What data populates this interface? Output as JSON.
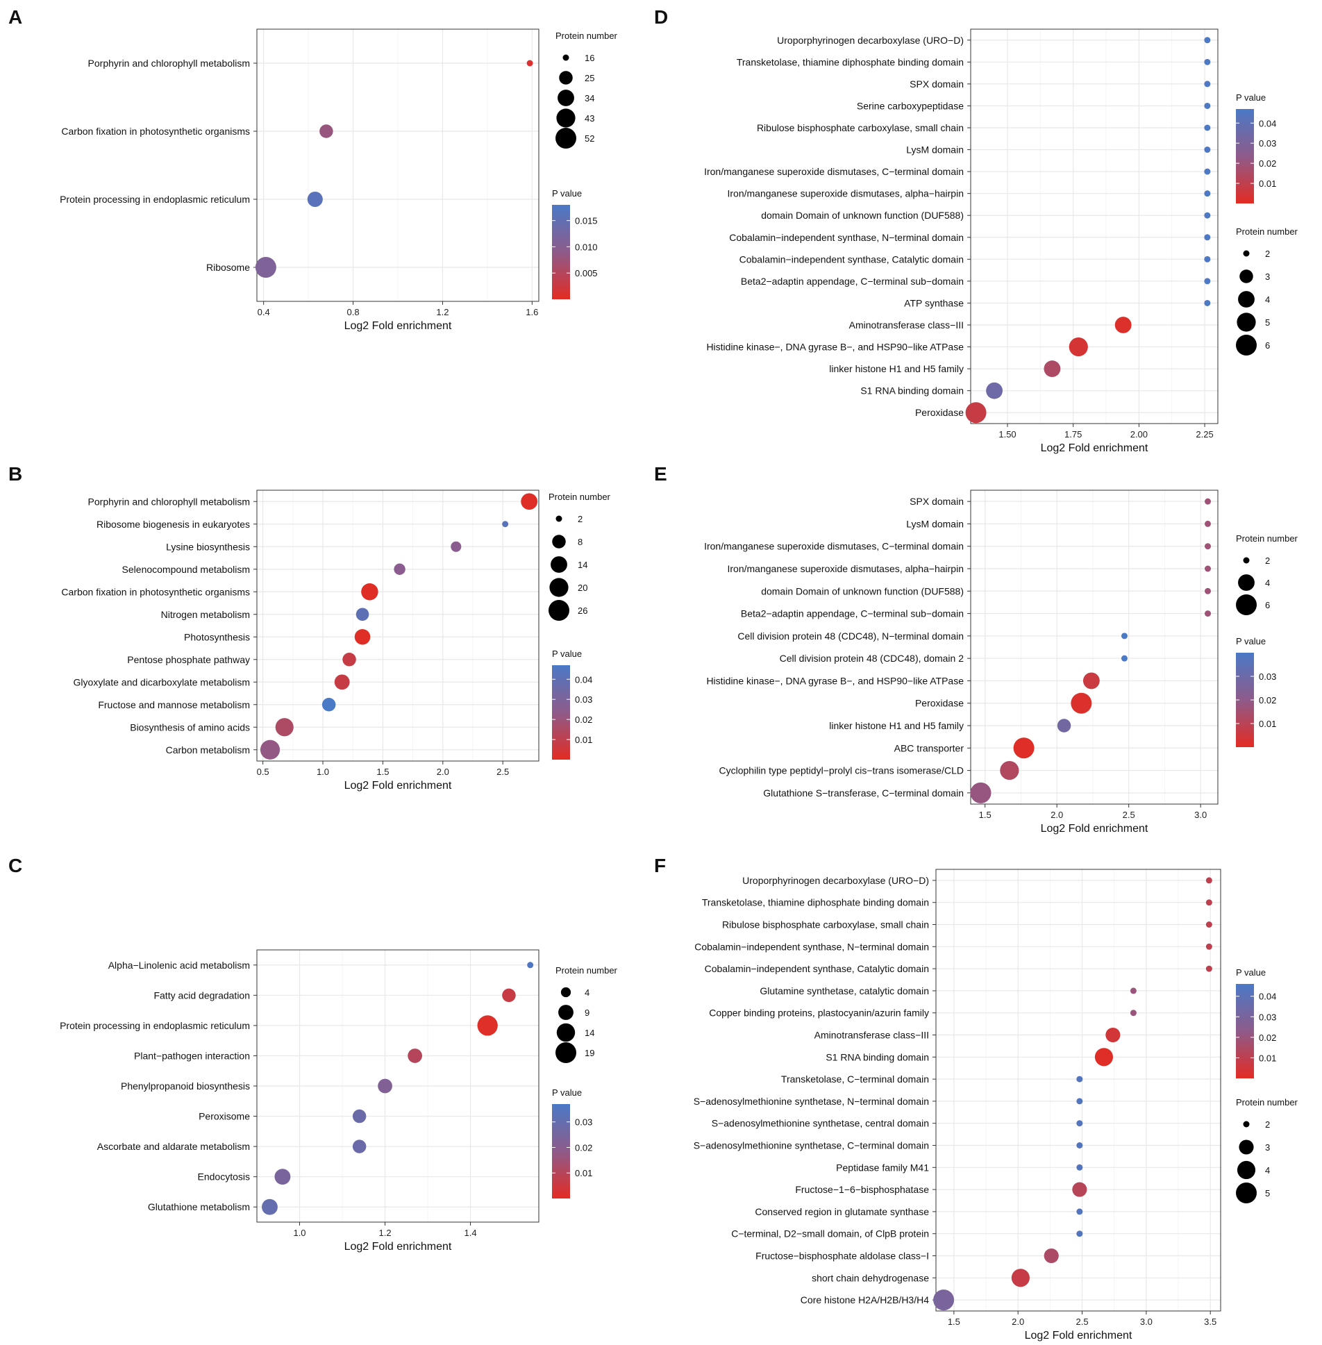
{
  "colors": {
    "low_p": "#e32c22",
    "mid_p": "#8e5b8a",
    "high_p": "#4a79c6",
    "grid": "#e8e8e8",
    "frame": "#333333",
    "background": "#ffffff"
  },
  "chart_data": [
    {
      "panel": "A",
      "type": "scatter",
      "xlabel": "Log2 Fold enrichment",
      "ylabel": "",
      "xlim": [
        0.37,
        1.63
      ],
      "xticks": [
        0.4,
        0.8,
        1.2,
        1.6
      ],
      "xtick_labels": [
        "0.4",
        "0.8",
        "1.2",
        "1.6"
      ],
      "categories": [
        "Porphyrin and chlorophyll metabolism",
        "Carbon fixation in photosynthetic organisms",
        "Protein processing in endoplasmic reticulum",
        "Ribosome"
      ],
      "x": [
        1.59,
        0.68,
        0.63,
        0.41
      ],
      "size": [
        16,
        25,
        30,
        52
      ],
      "p": [
        0.001,
        0.008,
        0.016,
        0.011
      ],
      "size_legend": {
        "title": "Protein number",
        "values": [
          16,
          25,
          34,
          43,
          52
        ],
        "labels": [
          "16",
          "25",
          "34",
          "43",
          "52"
        ],
        "min": 16,
        "max": 52
      },
      "color_legend": {
        "title": "P value",
        "min": 0.0,
        "max": 0.018,
        "ticks": [
          0.015,
          0.01,
          0.005
        ],
        "labels": [
          "0.015",
          "0.010",
          "0.005"
        ]
      }
    },
    {
      "panel": "B",
      "type": "scatter",
      "xlabel": "Log2 Fold enrichment",
      "ylabel": "",
      "xlim": [
        0.45,
        2.8
      ],
      "xticks": [
        0.5,
        1.0,
        1.5,
        2.0,
        2.5
      ],
      "xtick_labels": [
        "0.5",
        "1.0",
        "1.5",
        "2.0",
        "2.5"
      ],
      "categories": [
        "Porphyrin and chlorophyll metabolism",
        "Ribosome biogenesis in eukaryotes",
        "Lysine biosynthesis",
        "Selenocompound metabolism",
        "Carbon fixation in photosynthetic organisms",
        "Nitrogen metabolism",
        "Photosynthesis",
        "Pentose phosphate pathway",
        "Glyoxylate and dicarboxylate metabolism",
        "Fructose and mannose metabolism",
        "Biosynthesis of amino acids",
        "Carbon metabolism"
      ],
      "x": [
        2.72,
        2.52,
        2.11,
        1.64,
        1.39,
        1.33,
        1.33,
        1.22,
        1.16,
        1.05,
        0.68,
        0.56
      ],
      "size": [
        14,
        2,
        4,
        5,
        15,
        7,
        12,
        8,
        11,
        8,
        18,
        22
      ],
      "p": [
        0.001,
        0.042,
        0.025,
        0.025,
        0.001,
        0.04,
        0.001,
        0.008,
        0.008,
        0.05,
        0.015,
        0.022
      ],
      "size_legend": {
        "title": "Protein number",
        "values": [
          2,
          8,
          14,
          20,
          26
        ],
        "labels": [
          "2",
          "8",
          "14",
          "20",
          "26"
        ],
        "min": 2,
        "max": 26
      },
      "color_legend": {
        "title": "P value",
        "min": 0.0,
        "max": 0.047,
        "ticks": [
          0.04,
          0.03,
          0.02,
          0.01
        ],
        "labels": [
          "0.04",
          "0.03",
          "0.02",
          "0.01"
        ]
      }
    },
    {
      "panel": "C",
      "type": "scatter",
      "xlabel": "Log2 Fold enrichment",
      "ylabel": "",
      "xlim": [
        0.9,
        1.56
      ],
      "xticks": [
        1.0,
        1.2,
        1.4
      ],
      "xtick_labels": [
        "1.0",
        "1.2",
        "1.4"
      ],
      "categories": [
        "Alpha−Linolenic acid metabolism",
        "Fatty acid degradation",
        "Protein processing in endoplasmic reticulum",
        "Plant−pathogen interaction",
        "Phenylpropanoid biosynthesis",
        "Peroxisome",
        "Ascorbate and aldarate metabolism",
        "Endocytosis",
        "Glutathione metabolism"
      ],
      "x": [
        1.54,
        1.49,
        1.44,
        1.27,
        1.2,
        1.14,
        1.14,
        0.96,
        0.93
      ],
      "size": [
        3,
        7,
        18,
        8,
        8,
        7,
        7,
        10,
        10
      ],
      "p": [
        0.036,
        0.006,
        0.001,
        0.01,
        0.022,
        0.028,
        0.028,
        0.024,
        0.03
      ],
      "size_legend": {
        "title": "Protein number",
        "values": [
          4,
          9,
          14,
          19
        ],
        "labels": [
          "4",
          "9",
          "14",
          "19"
        ],
        "min": 3,
        "max": 19
      },
      "color_legend": {
        "title": "P value",
        "min": 0.0,
        "max": 0.037,
        "ticks": [
          0.03,
          0.02,
          0.01
        ],
        "labels": [
          "0.03",
          "0.02",
          "0.01"
        ]
      }
    },
    {
      "panel": "D",
      "type": "scatter",
      "xlabel": "Log2 Fold enrichment",
      "ylabel": "",
      "xlim": [
        1.36,
        2.3
      ],
      "xticks": [
        1.5,
        1.75,
        2.0,
        2.25
      ],
      "xtick_labels": [
        "1.50",
        "1.75",
        "2.00",
        "2.25"
      ],
      "categories": [
        "Uroporphyrinogen decarboxylase (URO−D)",
        "Transketolase, thiamine diphosphate binding domain",
        "SPX domain",
        "Serine carboxypeptidase",
        "Ribulose bisphosphate carboxylase, small chain",
        "LysM domain",
        "Iron/manganese superoxide dismutases, C−terminal domain",
        "Iron/manganese superoxide dismutases, alpha−hairpin",
        "domain Domain of unknown function (DUF588)",
        "Cobalamin−independent synthase, N−terminal domain",
        "Cobalamin−independent synthase, Catalytic domain",
        "Beta2−adaptin appendage, C−terminal sub−domain",
        "ATP synthase",
        "Aminotransferase class−III",
        "Histidine kinase−, DNA gyrase B−, and HSP90−like ATPase",
        "linker histone H1 and H5 family",
        "S1 RNA binding domain",
        "Peroxidase"
      ],
      "x": [
        2.26,
        2.26,
        2.26,
        2.26,
        2.26,
        2.26,
        2.26,
        2.26,
        2.26,
        2.26,
        2.26,
        2.26,
        2.26,
        1.94,
        1.77,
        1.67,
        1.45,
        1.38
      ],
      "size": [
        2,
        2,
        2,
        2,
        2,
        2,
        2,
        2,
        2,
        2,
        2,
        2,
        2,
        4,
        5,
        4,
        4,
        6
      ],
      "p": [
        0.046,
        0.046,
        0.046,
        0.046,
        0.046,
        0.046,
        0.046,
        0.046,
        0.046,
        0.046,
        0.046,
        0.046,
        0.046,
        0.002,
        0.004,
        0.015,
        0.035,
        0.008
      ],
      "size_legend": {
        "title": "Protein number",
        "values": [
          2,
          3,
          4,
          5,
          6
        ],
        "labels": [
          "2",
          "3",
          "4",
          "5",
          "6"
        ],
        "min": 2,
        "max": 6
      },
      "color_legend": {
        "title": "P value",
        "min": 0.0,
        "max": 0.047,
        "ticks": [
          0.04,
          0.03,
          0.02,
          0.01
        ],
        "labels": [
          "0.04",
          "0.03",
          "0.02",
          "0.01"
        ]
      }
    },
    {
      "panel": "E",
      "type": "scatter",
      "xlabel": "Log2 Fold enrichment",
      "ylabel": "",
      "xlim": [
        1.4,
        3.12
      ],
      "xticks": [
        1.5,
        2.0,
        2.5,
        3.0
      ],
      "xtick_labels": [
        "1.5",
        "2.0",
        "2.5",
        "3.0"
      ],
      "categories": [
        "SPX domain",
        "LysM domain",
        "Iron/manganese superoxide dismutases, C−terminal domain",
        "Iron/manganese superoxide dismutases, alpha−hairpin",
        "domain Domain of unknown function (DUF588)",
        "Beta2−adaptin appendage, C−terminal sub−domain",
        "Cell division protein 48 (CDC48), N−terminal domain",
        "Cell division protein 48 (CDC48), domain 2",
        "Histidine kinase−, DNA gyrase B−, and HSP90−like ATPase",
        "Peroxidase",
        "linker histone H1 and H5 family",
        "ABC transporter",
        "Cyclophilin type peptidyl−prolyl cis−trans isomerase/CLD",
        "Glutathione S−transferase, C−terminal domain"
      ],
      "x": [
        3.05,
        3.05,
        3.05,
        3.05,
        3.05,
        3.05,
        2.47,
        2.47,
        2.24,
        2.17,
        2.05,
        1.77,
        1.67,
        1.47
      ],
      "size": [
        2,
        2,
        2,
        2,
        2,
        2,
        2,
        2,
        4,
        6,
        3,
        6,
        5,
        6
      ],
      "p": [
        0.016,
        0.016,
        0.016,
        0.016,
        0.016,
        0.016,
        0.04,
        0.04,
        0.006,
        0.002,
        0.028,
        0.001,
        0.012,
        0.018
      ],
      "size_legend": {
        "title": "Protein number",
        "values": [
          2,
          4,
          6
        ],
        "labels": [
          "2",
          "4",
          "6"
        ],
        "min": 2,
        "max": 6
      },
      "color_legend": {
        "title": "P value",
        "min": 0.0,
        "max": 0.04,
        "ticks": [
          0.03,
          0.02,
          0.01
        ],
        "labels": [
          "0.03",
          "0.02",
          "0.01"
        ]
      }
    },
    {
      "panel": "F",
      "type": "scatter",
      "xlabel": "Log2 Fold enrichment",
      "ylabel": "",
      "xlim": [
        1.36,
        3.58
      ],
      "xticks": [
        1.5,
        2.0,
        2.5,
        3.0,
        3.5
      ],
      "xtick_labels": [
        "1.5",
        "2.0",
        "2.5",
        "3.0",
        "3.5"
      ],
      "categories": [
        "Uroporphyrinogen decarboxylase (URO−D)",
        "Transketolase, thiamine diphosphate binding domain",
        "Ribulose bisphosphate carboxylase, small chain",
        "Cobalamin−independent synthase, N−terminal domain",
        "Cobalamin−independent synthase, Catalytic domain",
        "Glutamine synthetase, catalytic domain",
        "Copper binding proteins, plastocyanin/azurin family",
        "Aminotransferase class−III",
        "S1 RNA binding domain",
        "Transketolase, C−terminal domain",
        "S−adenosylmethionine synthetase, N−terminal domain",
        "S−adenosylmethionine synthetase, central domain",
        "S−adenosylmethionine synthetase, C−terminal domain",
        "Peptidase family M41",
        "Fructose−1−6−bisphosphatase",
        "Conserved region in glutamate synthase",
        "C−terminal, D2−small domain, of ClpB protein",
        "Fructose−bisphosphate aldolase class−I",
        "short chain dehydrogenase",
        "Core histone H2A/H2B/H3/H4"
      ],
      "x": [
        3.49,
        3.49,
        3.49,
        3.49,
        3.49,
        2.9,
        2.9,
        2.74,
        2.67,
        2.48,
        2.48,
        2.48,
        2.48,
        2.48,
        2.48,
        2.48,
        2.48,
        2.26,
        2.02,
        1.42
      ],
      "size": [
        2,
        2,
        2,
        2,
        2,
        2,
        2,
        3,
        4,
        2,
        2,
        2,
        2,
        2,
        3,
        2,
        2,
        3,
        4,
        5
      ],
      "p": [
        0.01,
        0.01,
        0.01,
        0.01,
        0.01,
        0.02,
        0.02,
        0.005,
        0.001,
        0.043,
        0.043,
        0.043,
        0.043,
        0.043,
        0.012,
        0.043,
        0.043,
        0.015,
        0.008,
        0.03
      ],
      "size_legend": {
        "title": "Protein number",
        "values": [
          2,
          3,
          4,
          5
        ],
        "labels": [
          "2",
          "3",
          "4",
          "5"
        ],
        "min": 2,
        "max": 5
      },
      "color_legend": {
        "title": "P value",
        "min": 0.0,
        "max": 0.046,
        "ticks": [
          0.04,
          0.03,
          0.02,
          0.01
        ],
        "labels": [
          "0.04",
          "0.03",
          "0.02",
          "0.01"
        ]
      }
    }
  ]
}
